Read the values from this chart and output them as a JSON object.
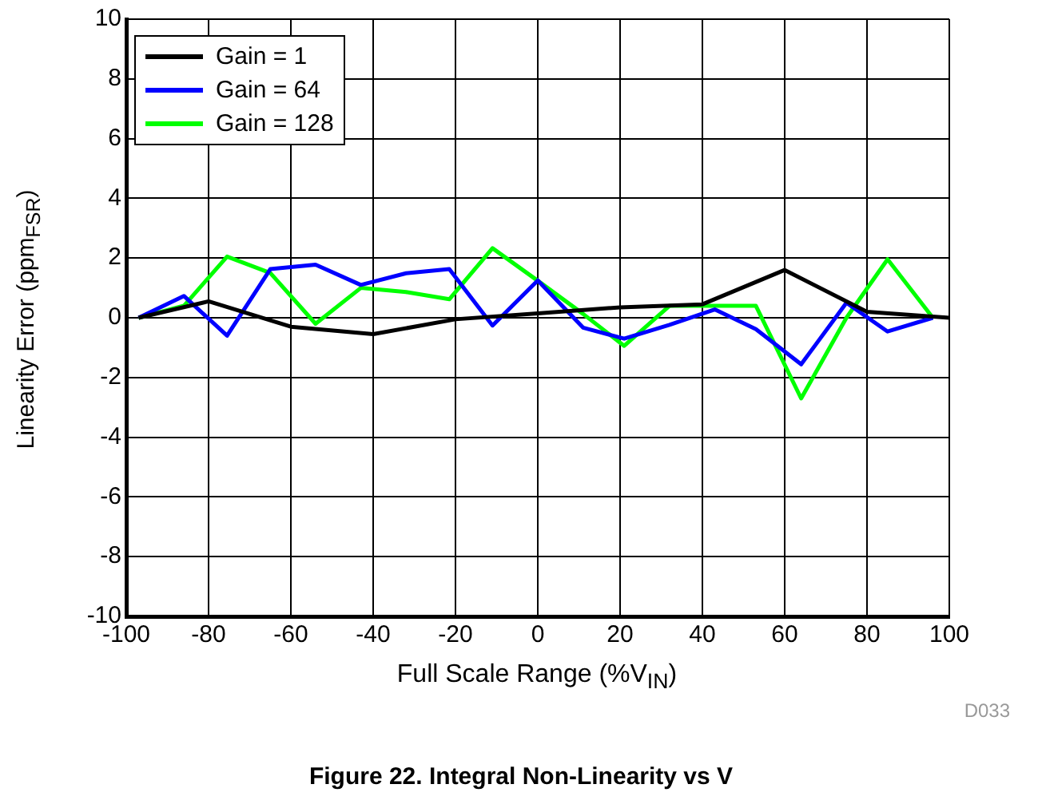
{
  "chart_data": {
    "type": "line",
    "title": "Figure 22. Integral Non-Linearity vs V",
    "xlabel": "Full Scale Range (%V$_{IN}$)",
    "ylabel": "Linearity Error (ppm$_{FSR}$)",
    "annotations": [
      "D033"
    ],
    "xlim": [
      -100,
      100
    ],
    "xticks": [
      -100,
      -80,
      -60,
      -40,
      -20,
      0,
      20,
      40,
      60,
      80,
      100
    ],
    "ylim": [
      -10,
      10
    ],
    "yticks": [
      -10,
      -8,
      -6,
      -4,
      -2,
      0,
      2,
      4,
      6,
      8,
      10
    ],
    "grid": true,
    "legend": "top left",
    "marker": "none",
    "line_style": "solid",
    "series": [
      {
        "name": "Gain = 1",
        "color": "#000000",
        "x": [
          -97,
          -80,
          -60,
          -40,
          -20,
          0,
          20,
          40,
          60,
          80,
          100
        ],
        "values": [
          0,
          0.55,
          -0.3,
          -0.55,
          -0.05,
          0.15,
          0.35,
          0.45,
          1.6,
          0.2,
          0
        ]
      },
      {
        "name": "Gain = 64",
        "color": "#0000ff",
        "x": [
          -97,
          -86,
          -75.5,
          -65,
          -54,
          -43,
          -32,
          -21.5,
          -11,
          0,
          11,
          21,
          32,
          43,
          53,
          64,
          75,
          85,
          96
        ],
        "values": [
          0,
          0.73,
          -0.6,
          1.63,
          1.78,
          1.1,
          1.49,
          1.63,
          -0.26,
          1.25,
          -0.33,
          -0.7,
          -0.24,
          0.28,
          -0.38,
          -1.56,
          0.5,
          -0.46,
          0
        ]
      },
      {
        "name": "Gain = 128",
        "color": "#00ff00",
        "x": [
          -97,
          -86,
          -75.5,
          -65,
          -54,
          -43,
          -32,
          -21.5,
          -11,
          0,
          11,
          21,
          32,
          43,
          53,
          64,
          75,
          85,
          96
        ],
        "values": [
          0,
          0.4,
          2.05,
          1.5,
          -0.2,
          1.0,
          0.86,
          0.62,
          2.33,
          1.24,
          0.13,
          -0.94,
          0.4,
          0.4,
          0.4,
          -2.7,
          0,
          1.96,
          0
        ]
      }
    ]
  }
}
